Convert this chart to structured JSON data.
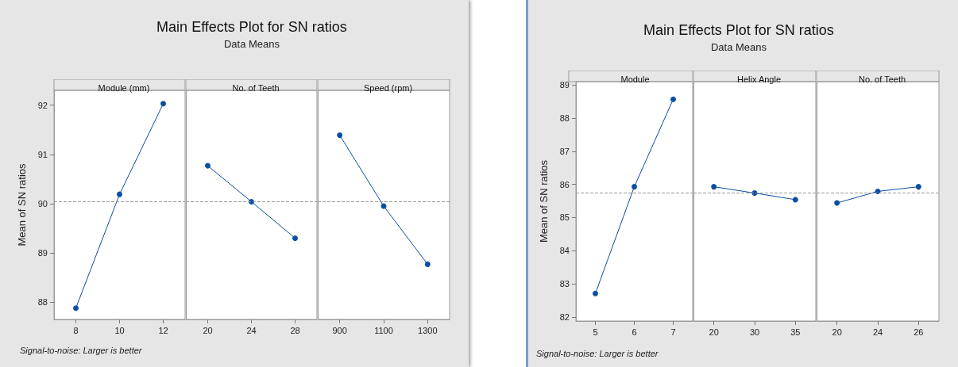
{
  "chart_data": [
    {
      "type": "line",
      "title": "Module (mm)",
      "ylabel": "Mean of SN ratios",
      "annotations": [
        "Main Effects Plot for SN ratios",
        "Data Means",
        "Signal-to-noise: Larger is better"
      ],
      "categories": [
        "8",
        "10",
        "12"
      ],
      "values": [
        87.88,
        90.19,
        92.03
      ],
      "color": "#0b4ea2",
      "ylim": [
        87.65,
        92.3
      ],
      "yticks": [
        88,
        89,
        90,
        91,
        92
      ],
      "ref_lines": [
        {
          "axis": "y",
          "value": 90.04,
          "color": "#999999",
          "line_style": "dashed"
        }
      ],
      "marker": "circle",
      "grid": false
    },
    {
      "type": "line",
      "title": "No. of Teeth",
      "categories": [
        "20",
        "24",
        "28"
      ],
      "values": [
        90.77,
        90.04,
        89.3
      ],
      "color": "#0b4ea2",
      "ylim": [
        87.65,
        92.3
      ],
      "tick_labels": "x",
      "ref_lines": [
        {
          "axis": "y",
          "value": 90.04,
          "color": "#999999",
          "line_style": "dashed"
        }
      ],
      "marker": "circle",
      "grid": false
    },
    {
      "type": "line",
      "title": "Speed (rpm)",
      "categories": [
        "900",
        "1100",
        "1300"
      ],
      "values": [
        91.39,
        89.95,
        88.77
      ],
      "color": "#0b4ea2",
      "ylim": [
        87.65,
        92.3
      ],
      "tick_labels": "x",
      "ref_lines": [
        {
          "axis": "y",
          "value": 90.04,
          "color": "#999999",
          "line_style": "dashed"
        }
      ],
      "marker": "circle",
      "grid": false
    },
    {
      "type": "line",
      "title": "Module",
      "ylabel": "Mean of SN ratios",
      "annotations": [
        "Main Effects Plot for SN ratios",
        "Data Means",
        "Signal-to-noise: Larger is better"
      ],
      "categories": [
        "5",
        "6",
        "7"
      ],
      "values": [
        82.71,
        85.93,
        88.57
      ],
      "color": "#0b4ea2",
      "ylim": [
        81.88,
        89.1
      ],
      "yticks": [
        82,
        83,
        84,
        85,
        86,
        87,
        88,
        89
      ],
      "ref_lines": [
        {
          "axis": "y",
          "value": 85.74,
          "color": "#999999",
          "line_style": "dashed"
        }
      ],
      "marker": "circle",
      "grid": false
    },
    {
      "type": "line",
      "title": "Helix Angle",
      "categories": [
        "20",
        "30",
        "35"
      ],
      "values": [
        85.93,
        85.74,
        85.54
      ],
      "color": "#0b4ea2",
      "ylim": [
        81.88,
        89.1
      ],
      "tick_labels": "x",
      "ref_lines": [
        {
          "axis": "y",
          "value": 85.74,
          "color": "#999999",
          "line_style": "dashed"
        }
      ],
      "marker": "circle",
      "grid": false
    },
    {
      "type": "line",
      "title": "No. of Teeth",
      "categories": [
        "20",
        "24",
        "26"
      ],
      "values": [
        85.44,
        85.79,
        85.93
      ],
      "color": "#0b4ea2",
      "ylim": [
        81.88,
        89.1
      ],
      "tick_labels": "x",
      "ref_lines": [
        {
          "axis": "y",
          "value": 85.74,
          "color": "#999999",
          "line_style": "dashed"
        }
      ],
      "marker": "circle",
      "grid": false
    }
  ]
}
